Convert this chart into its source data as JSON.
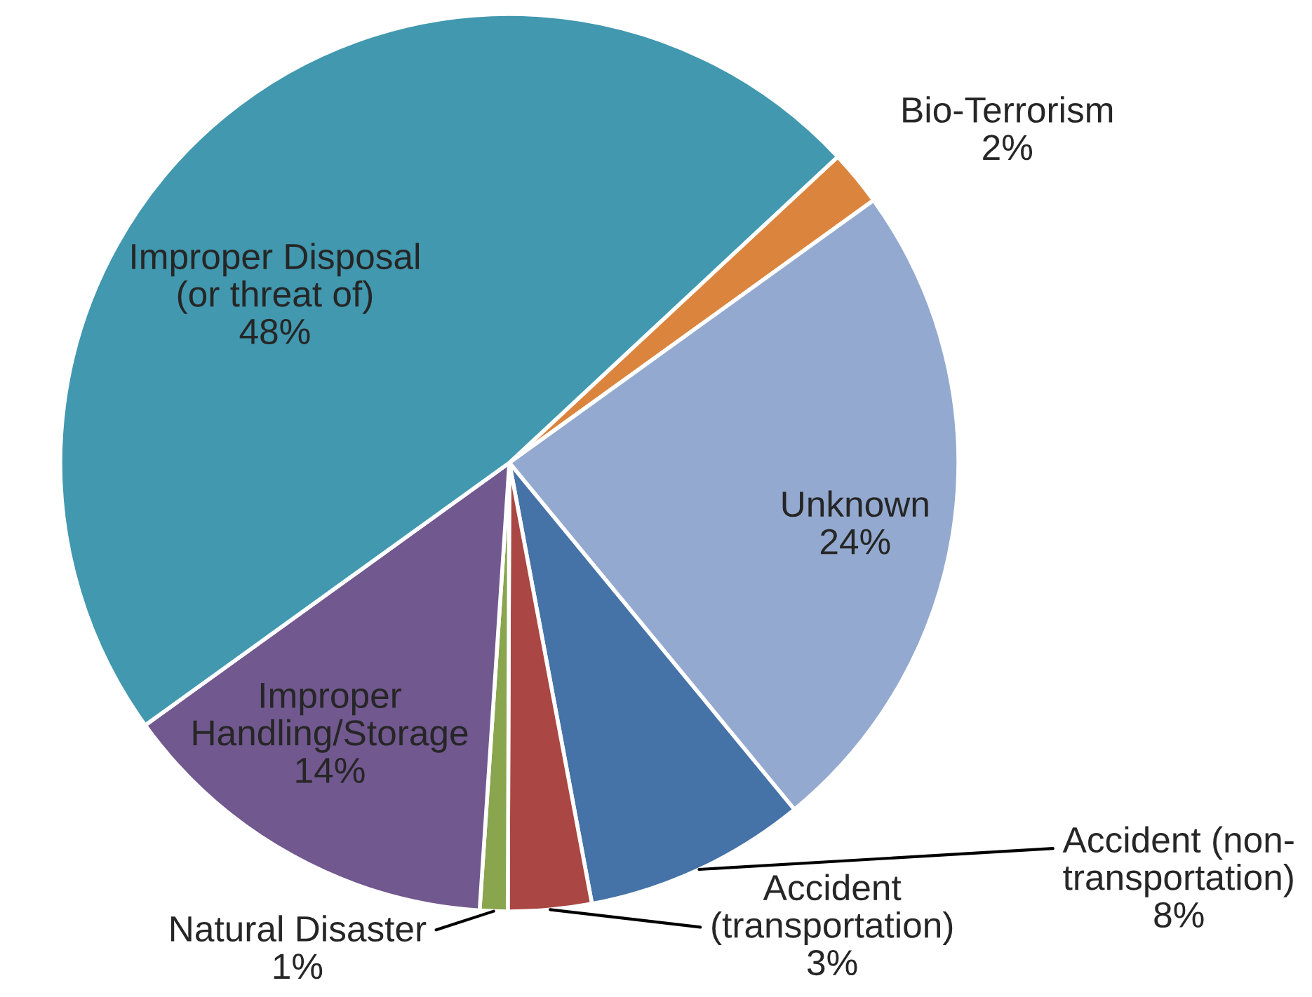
{
  "chart_data": {
    "type": "pie",
    "categories": [
      "Bio-Terrorism",
      "Unknown",
      "Accident (non-\ntransportation)",
      "Accident\n(transportation)",
      "Natural Disaster",
      "Improper\nHandling/Storage",
      "Improper Disposal\n(or threat of)"
    ],
    "values": [
      2,
      24,
      8,
      3,
      1,
      14,
      48
    ],
    "value_labels": [
      "2%",
      "24%",
      "8%",
      "3%",
      "1%",
      "14%",
      "48%"
    ],
    "colors": [
      "#db843d",
      "#93a9cf",
      "#4572a7",
      "#aa4643",
      "#89a54e",
      "#71588f",
      "#4198af"
    ]
  }
}
